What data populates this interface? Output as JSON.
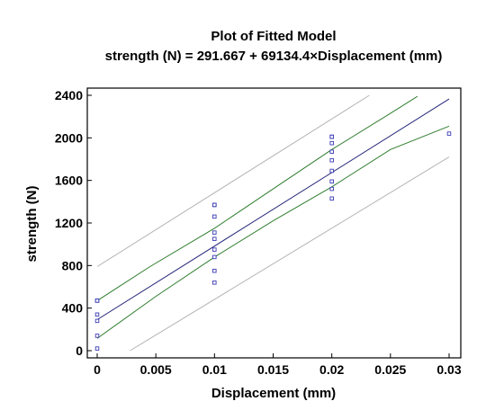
{
  "chart_data": {
    "type": "scatter",
    "title": "Plot of Fitted Model",
    "subtitle": "strength (N) = 291.667 + 69134.4×Displacement (mm)",
    "xlabel": "Displacement (mm)",
    "ylabel": "strength (N)",
    "xlim": [
      0,
      0.03
    ],
    "ylim": [
      0,
      2400
    ],
    "xticks": [
      0,
      0.005,
      0.01,
      0.015,
      0.02,
      0.025,
      0.03
    ],
    "xtick_labels": [
      "0",
      "0.005",
      "0.01",
      "0.015",
      "0.02",
      "0.025",
      "0.03"
    ],
    "yticks": [
      0,
      400,
      800,
      1200,
      1600,
      2000,
      2400
    ],
    "ytick_labels": [
      "0",
      "400",
      "800",
      "1200",
      "1600",
      "2000",
      "2400"
    ],
    "grid": false,
    "model": {
      "intercept": 291.667,
      "slope": 69134.4
    },
    "points": {
      "x": [
        0,
        0,
        0,
        0,
        0,
        0,
        0.01,
        0.01,
        0.01,
        0.01,
        0.01,
        0.01,
        0.01,
        0.01,
        0.01,
        0.01,
        0.02,
        0.02,
        0.02,
        0.02,
        0.02,
        0.02,
        0.02,
        0.02,
        0.02,
        0.02,
        0.03
      ],
      "y": [
        20,
        140,
        280,
        340,
        470,
        470,
        640,
        750,
        880,
        950,
        1050,
        1110,
        1260,
        1370,
        1370,
        1370,
        1430,
        1520,
        1590,
        1690,
        1790,
        1870,
        1950,
        2010,
        2010,
        2010,
        2040
      ]
    },
    "lines": {
      "fit": {
        "x": [
          0,
          0.03
        ],
        "y": [
          291.667,
          2365.7
        ]
      },
      "confidence_upper": {
        "x": [
          0,
          0.0045,
          0.01,
          0.015,
          0.02,
          0.025,
          0.0273
        ],
        "y": [
          470,
          790,
          1150,
          1520,
          1890,
          2230,
          2390
        ]
      },
      "confidence_lower": {
        "x": [
          0,
          0.005,
          0.01,
          0.015,
          0.02,
          0.025,
          0.03
        ],
        "y": [
          115,
          510,
          880,
          1220,
          1540,
          1890,
          2110
        ]
      },
      "prediction_upper": {
        "x": [
          0,
          0.0232
        ],
        "y": [
          790,
          2400
        ]
      },
      "prediction_lower": {
        "x": [
          0.0028,
          0.03
        ],
        "y": [
          0,
          1820
        ]
      }
    },
    "colors": {
      "points": "#3b3bb5",
      "fit": "#24247a",
      "confidence": "#2f7d2f",
      "prediction": "#b4b4b4",
      "axis": "#000000"
    }
  }
}
